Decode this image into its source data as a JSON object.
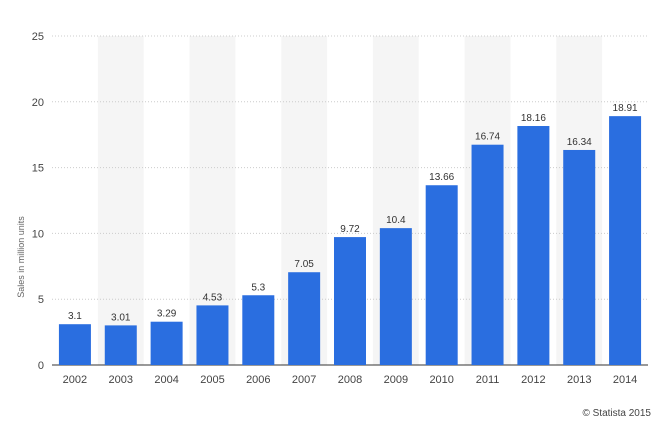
{
  "chart_data": {
    "type": "bar",
    "categories": [
      "2002",
      "2003",
      "2004",
      "2005",
      "2006",
      "2007",
      "2008",
      "2009",
      "2010",
      "2011",
      "2012",
      "2013",
      "2014"
    ],
    "values": [
      3.1,
      3.01,
      3.29,
      4.53,
      5.3,
      7.05,
      9.72,
      10.4,
      13.66,
      16.74,
      18.16,
      16.34,
      18.91
    ],
    "ylabel": "Sales in million units",
    "xlabel": "",
    "ylim": [
      0,
      25
    ],
    "yticks": [
      0,
      5,
      10,
      15,
      20,
      25
    ],
    "grid": true,
    "bar_color": "#2a6ee0",
    "alt_band_color": "#f5f5f5",
    "legend": "none"
  },
  "credit": "© Statista 2015"
}
